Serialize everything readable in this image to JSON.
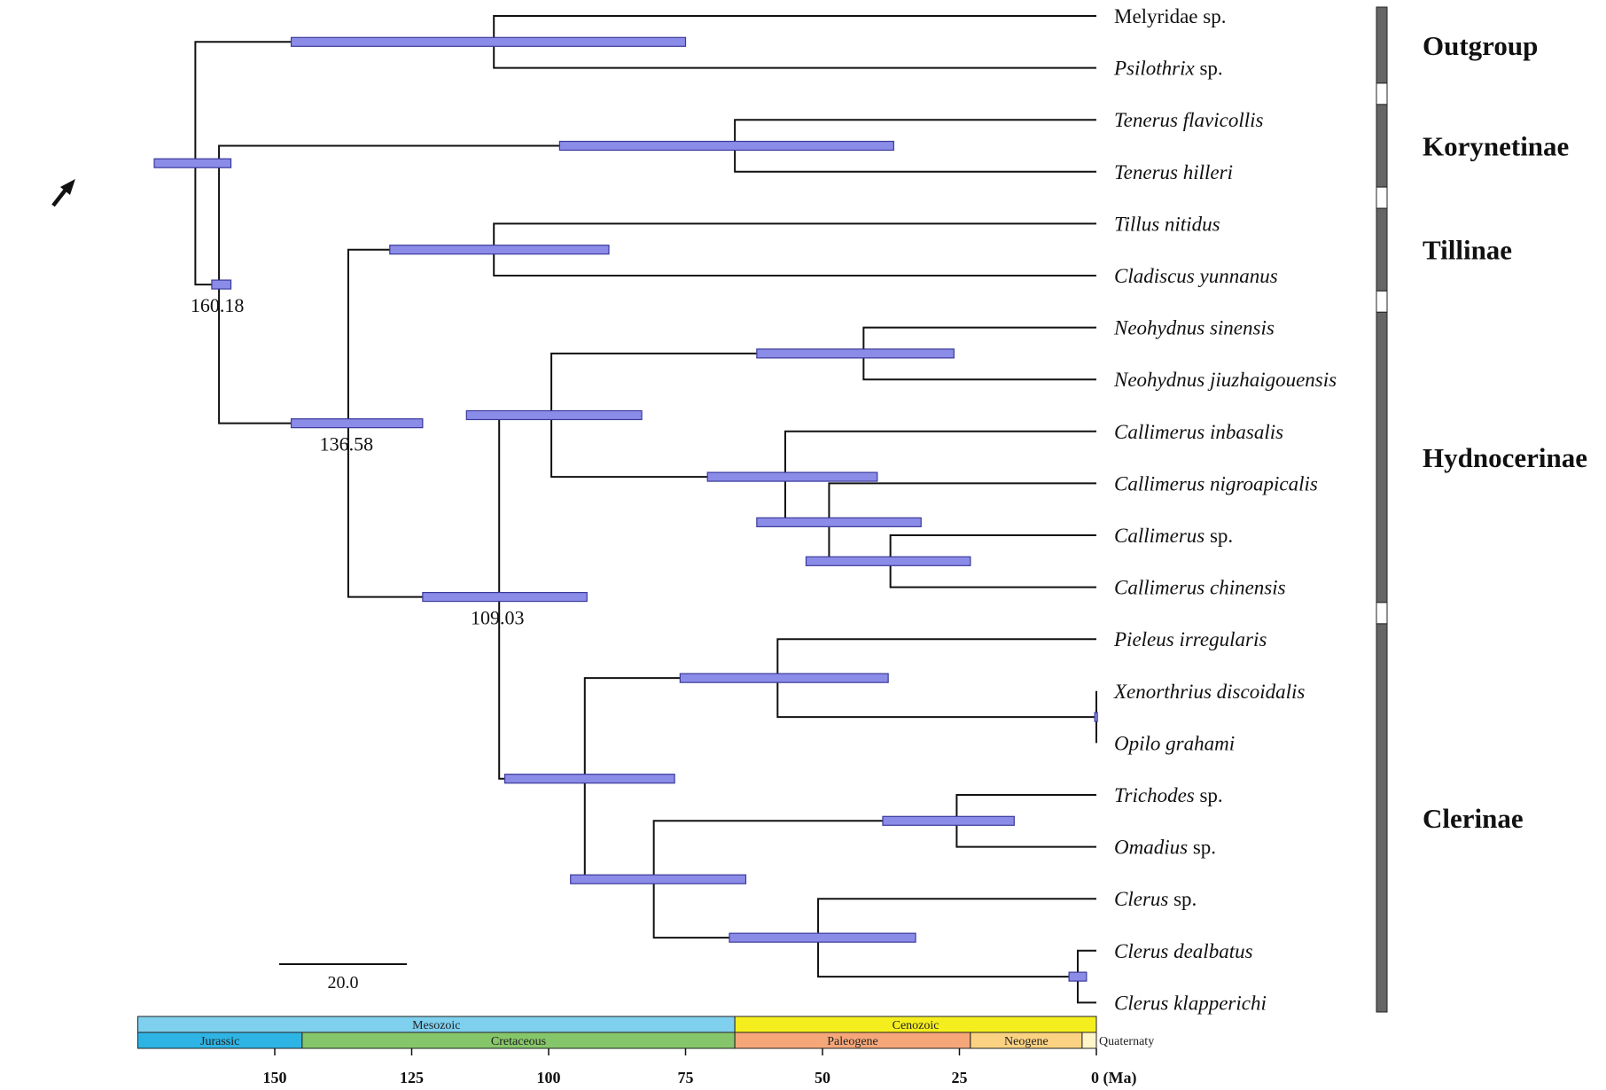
{
  "figure": {
    "taxa": [
      {
        "genus": "Melyridae",
        "epithet": "sp.",
        "italic_genus": false
      },
      {
        "genus": "Psilothrix",
        "epithet": "sp.",
        "italic_genus": true,
        "italic_epithet": false
      },
      {
        "genus": "Tenerus",
        "epithet": "flavicollis",
        "italic_genus": true,
        "italic_epithet": true
      },
      {
        "genus": "Tenerus",
        "epithet": "hilleri",
        "italic_genus": true,
        "italic_epithet": true
      },
      {
        "genus": "Tillus",
        "epithet": "nitidus",
        "italic_genus": true,
        "italic_epithet": true
      },
      {
        "genus": "Cladiscus",
        "epithet": "yunnanus",
        "italic_genus": true,
        "italic_epithet": true
      },
      {
        "genus": "Neohydnus",
        "epithet": "sinensis",
        "italic_genus": true,
        "italic_epithet": true
      },
      {
        "genus": "Neohydnus",
        "epithet": "jiuzhaigouensis",
        "italic_genus": true,
        "italic_epithet": true
      },
      {
        "genus": "Callimerus",
        "epithet": "inbasalis",
        "italic_genus": true,
        "italic_epithet": true
      },
      {
        "genus": "Callimerus",
        "epithet": "nigroapicalis",
        "italic_genus": true,
        "italic_epithet": true
      },
      {
        "genus": "Callimerus",
        "epithet": "sp.",
        "italic_genus": true,
        "italic_epithet": false
      },
      {
        "genus": "Callimerus",
        "epithet": "chinensis",
        "italic_genus": true,
        "italic_epithet": true
      },
      {
        "genus": "Pieleus",
        "epithet": "irregularis",
        "italic_genus": true,
        "italic_epithet": true
      },
      {
        "genus": "Xenorthrius",
        "epithet": "discoidalis",
        "italic_genus": true,
        "italic_epithet": true
      },
      {
        "genus": "Opilo",
        "epithet": "grahami",
        "italic_genus": true,
        "italic_epithet": true
      },
      {
        "genus": "Trichodes",
        "epithet": "sp.",
        "italic_genus": true,
        "italic_epithet": false
      },
      {
        "genus": "Omadius",
        "epithet": "sp.",
        "italic_genus": true,
        "italic_epithet": false
      },
      {
        "genus": "Clerus",
        "epithet": "sp.",
        "italic_genus": true,
        "italic_epithet": false
      },
      {
        "genus": "Clerus",
        "epithet": "dealbatus",
        "italic_genus": true,
        "italic_epithet": true
      },
      {
        "genus": "Clerus",
        "epithet": "klapperichi",
        "italic_genus": true,
        "italic_epithet": true
      }
    ],
    "clades": [
      {
        "name": "Outgroup",
        "first_taxon": 0,
        "last_taxon": 1
      },
      {
        "name": "Korynetinae",
        "first_taxon": 2,
        "last_taxon": 3
      },
      {
        "name": "Tillinae",
        "first_taxon": 4,
        "last_taxon": 5
      },
      {
        "name": "Hydnocerinae",
        "first_taxon": 6,
        "last_taxon": 11
      },
      {
        "name": "Clerinae",
        "first_taxon": 12,
        "last_taxon": 19
      }
    ],
    "node_age_labels": [
      "160.18",
      "136.58",
      "109.03"
    ],
    "scale_bar_label": "20.0",
    "eras": [
      {
        "name": "Mesozoic",
        "start_ma": 175,
        "end_ma": 66,
        "color": "#7fcfee"
      },
      {
        "name": "Cenozoic",
        "start_ma": 66,
        "end_ma": 0,
        "color": "#f5ee1e"
      }
    ],
    "periods": [
      {
        "name": "Jurassic",
        "start_ma": 175,
        "end_ma": 145,
        "color": "#2eb4e4"
      },
      {
        "name": "Cretaceous",
        "start_ma": 145,
        "end_ma": 66,
        "color": "#86c66a"
      },
      {
        "name": "Paleogene",
        "start_ma": 66,
        "end_ma": 23,
        "color": "#f6a77a"
      },
      {
        "name": "Neogene",
        "start_ma": 23,
        "end_ma": 2.6,
        "color": "#fbd282"
      },
      {
        "name": "Quaternaty",
        "start_ma": 2.6,
        "end_ma": 0,
        "color": "#fff5c8"
      }
    ],
    "axis_ticks": [
      "150",
      "125",
      "100",
      "75",
      "50",
      "25",
      "0 (Ma)"
    ],
    "colors": {
      "hpd_fill": "#8b8be8",
      "hpd_stroke": "#3a3a9a",
      "clade_bar": "#666666"
    }
  },
  "chart_data": {
    "type": "time-calibrated phylogeny",
    "axis_unit": "Ma",
    "axis_ticks_ma": [
      150,
      125,
      100,
      75,
      50,
      25,
      0
    ],
    "scale_bar_ma": 20.0,
    "nodes": [
      {
        "id": "root",
        "age": 164.5,
        "hpd": [
          172,
          158
        ],
        "children": [
          "outgroup",
          "ingroup"
        ]
      },
      {
        "id": "outgroup",
        "age": 110.0,
        "hpd": [
          147,
          75
        ],
        "children": [
          0,
          1
        ]
      },
      {
        "id": "ingroup",
        "age": 160.18,
        "hpd": [
          161.5,
          158
        ],
        "children": [
          "kory",
          "n136"
        ]
      },
      {
        "id": "kory",
        "age": 66.0,
        "hpd": [
          98,
          37
        ],
        "children": [
          2,
          3
        ]
      },
      {
        "id": "n136",
        "age": 136.58,
        "hpd": [
          147,
          123
        ],
        "children": [
          "till",
          "n109"
        ]
      },
      {
        "id": "till",
        "age": 110.0,
        "hpd": [
          129,
          89
        ],
        "children": [
          4,
          5
        ]
      },
      {
        "id": "n109",
        "age": 109.03,
        "hpd": [
          123,
          93
        ],
        "children": [
          "hyd",
          "cler"
        ]
      },
      {
        "id": "hyd",
        "age": 99.5,
        "hpd": [
          115,
          83
        ],
        "children": [
          "neo",
          "cal"
        ]
      },
      {
        "id": "neo",
        "age": 42.5,
        "hpd": [
          62,
          26
        ],
        "children": [
          6,
          7
        ]
      },
      {
        "id": "cal",
        "age": 56.8,
        "hpd": [
          71,
          40
        ],
        "children": [
          8,
          "cal2"
        ]
      },
      {
        "id": "cal2",
        "age": 48.8,
        "hpd": [
          62,
          32
        ],
        "children": [
          9,
          "cal3"
        ]
      },
      {
        "id": "cal3",
        "age": 37.6,
        "hpd": [
          53,
          23
        ],
        "children": [
          10,
          11
        ]
      },
      {
        "id": "cler",
        "age": 93.4,
        "hpd": [
          108,
          77
        ],
        "children": [
          "pie",
          "n81"
        ]
      },
      {
        "id": "pie",
        "age": 58.2,
        "hpd": [
          76,
          38
        ],
        "children": [
          12,
          "xen"
        ]
      },
      {
        "id": "xen",
        "age": 0.0,
        "hpd": [
          0.3,
          0
        ],
        "children": [
          13,
          14
        ]
      },
      {
        "id": "n81",
        "age": 80.8,
        "hpd": [
          96,
          64
        ],
        "children": [
          "tri",
          "clr"
        ]
      },
      {
        "id": "tri",
        "age": 25.5,
        "hpd": [
          39,
          15
        ],
        "children": [
          15,
          16
        ]
      },
      {
        "id": "clr",
        "age": 50.8,
        "hpd": [
          67,
          33
        ],
        "children": [
          17,
          "clr2"
        ]
      },
      {
        "id": "clr2",
        "age": 3.4,
        "hpd": [
          5,
          1.8
        ],
        "children": [
          18,
          19
        ]
      }
    ]
  }
}
